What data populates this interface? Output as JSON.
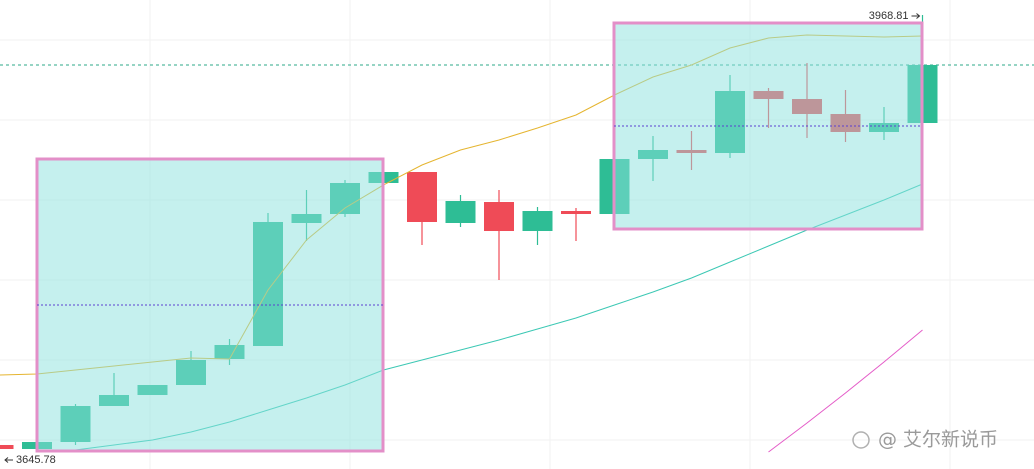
{
  "chart_data": {
    "type": "candlestick",
    "open": [
      3656.67,
      3653.76,
      3658.85,
      3684.98,
      3692.96,
      3700.22,
      3719.1,
      3728.53,
      3817.82,
      3824.35,
      3846.86,
      3854.84,
      3817.82,
      3833.06,
      3812.01,
      3826.53,
      3824.35,
      3864.28,
      3870.81,
      3868.63,
      3913.64,
      3907.83,
      3896.94,
      3883.88,
      3890.41
    ],
    "close": [
      3653.76,
      3658.85,
      3684.98,
      3692.96,
      3700.22,
      3718.37,
      3729.26,
      3818.55,
      3824.35,
      3846.86,
      3854.84,
      3818.55,
      3833.79,
      3812.01,
      3826.53,
      3824.35,
      3864.28,
      3870.81,
      3868.63,
      3913.64,
      3907.83,
      3896.94,
      3883.88,
      3890.41,
      3932.51
    ],
    "high": [
      3656.67,
      3660.3,
      3686.43,
      3708.93,
      3700.22,
      3724.9,
      3733.62,
      3825.08,
      3841.78,
      3849.03,
      3854.84,
      3854.84,
      3838.15,
      3841.78,
      3829.44,
      3828.71,
      3864.28,
      3880.97,
      3884.6,
      3925.26,
      3915.82,
      3933.97,
      3914.37,
      3902.03,
      3968.81
    ],
    "low": [
      3645.78,
      3651.59,
      3656.67,
      3684.98,
      3692.96,
      3700.22,
      3714.74,
      3728.53,
      3804.75,
      3822.18,
      3845.41,
      3801.85,
      3814.92,
      3776.44,
      3801.85,
      3804.75,
      3824.35,
      3848.31,
      3856.29,
      3865.0,
      3886.78,
      3879.52,
      3876.62,
      3878.07,
      3890.41
    ],
    "up_color": "#2ebd95",
    "down_color": "#ef4b57",
    "lines": [
      {
        "color": "#e5b530",
        "values": [
          3707.48,
          3708.21,
          3711.11,
          3714.01,
          3716.92,
          3719.82,
          3719.1,
          3769.18,
          3805.48,
          3828.71,
          3845.41,
          3859.92,
          3870.81,
          3878.07,
          3886.78,
          3896.22,
          3910.74,
          3923.8,
          3932.51,
          3944.85,
          3952.11,
          3954.29,
          3953.57,
          3952.84,
          3953.57
        ]
      },
      {
        "color": "#3cc8b4",
        "values": [
          null,
          null,
          3653.04,
          3656.67,
          3660.3,
          3666.11,
          3673.36,
          3682.08,
          3690.79,
          3700.22,
          3711.11,
          3718.37,
          3725.63,
          3732.89,
          3740.87,
          3748.86,
          3758.3,
          3767.73,
          3777.9,
          3789.51,
          3801.12,
          3812.74,
          3823.63,
          3834.52,
          3846.13
        ]
      },
      {
        "color": "#e45cc8",
        "values": [
          null,
          null,
          null,
          null,
          null,
          null,
          null,
          null,
          null,
          null,
          null,
          null,
          null,
          null,
          null,
          null,
          null,
          null,
          null,
          null,
          3651.59,
          3672.64,
          3694.42,
          3716.92,
          3740.15
        ]
      }
    ],
    "watermark": "@ 艾尔新说币"
  }
}
